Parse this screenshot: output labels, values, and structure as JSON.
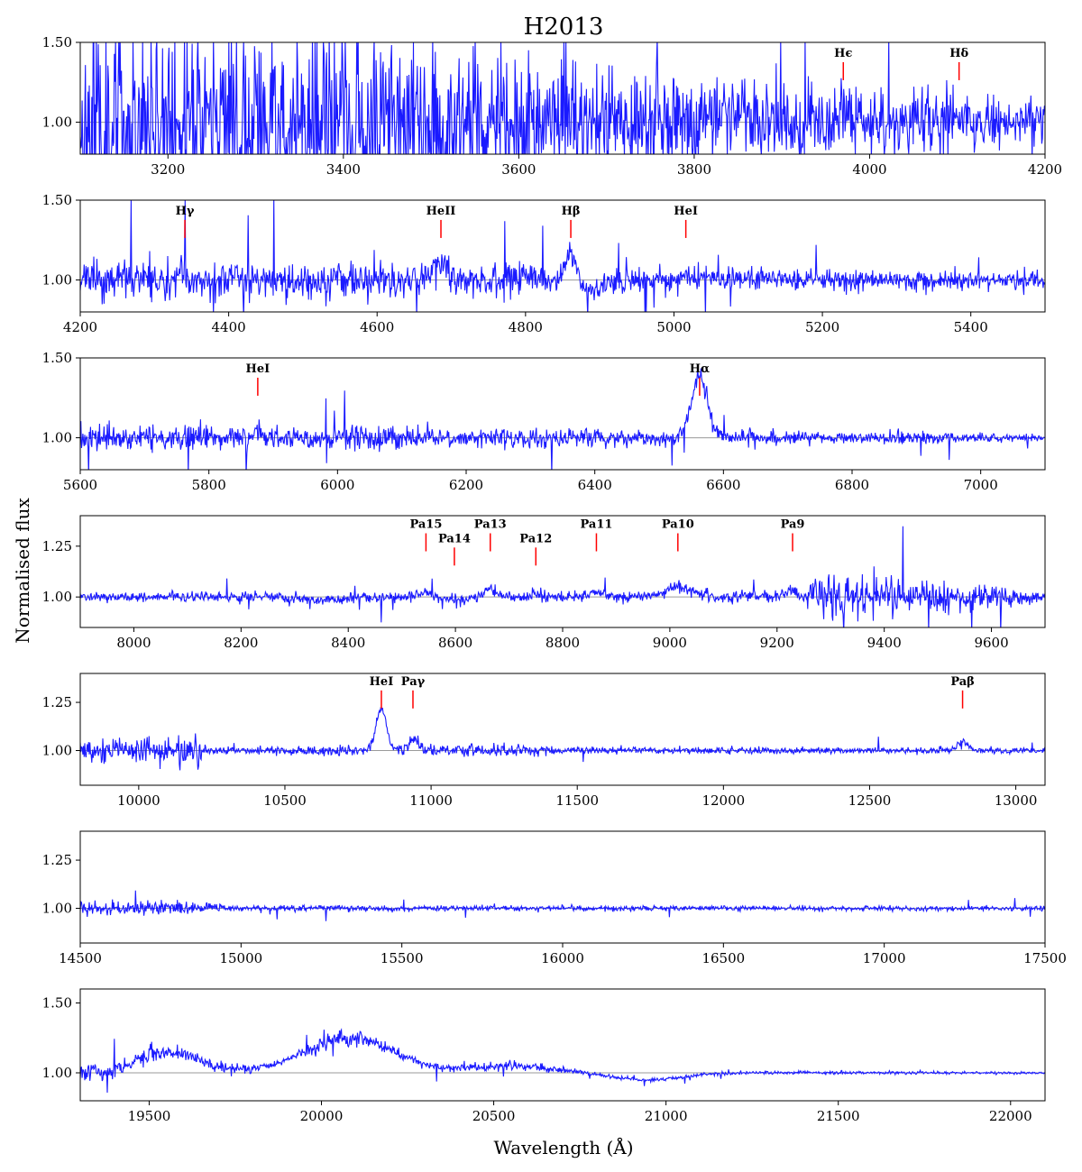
{
  "chart_data": {
    "type": "line",
    "title": "H2013",
    "xlabel": "Wavelength (Å)",
    "ylabel": "Normalised flux",
    "colors": {
      "spectrum": "#1a1aff",
      "marker": "#ff0000",
      "reference": "#9a9a9a"
    },
    "panels": [
      {
        "xlim": [
          3100,
          4200
        ],
        "ylim": [
          0.8,
          1.5
        ],
        "xticks": [
          "3200",
          "3400",
          "3600",
          "3800",
          "4000",
          "4200"
        ],
        "yticks": [
          "1.00",
          "1.50"
        ],
        "seed": 11,
        "noise": [
          [
            3100,
            0.55
          ],
          [
            3500,
            0.45
          ],
          [
            3700,
            0.3
          ],
          [
            3900,
            0.2
          ],
          [
            4200,
            0.12
          ]
        ],
        "features": [
          [
            3970,
            0.08,
            5
          ],
          [
            4102,
            0.06,
            5
          ]
        ],
        "lines": [
          {
            "label": "Hϵ",
            "wavelength": 3970,
            "label_y": 1.41
          },
          {
            "label": "Hδ",
            "wavelength": 4102,
            "label_y": 1.41
          }
        ]
      },
      {
        "xlim": [
          4200,
          5500
        ],
        "ylim": [
          0.8,
          1.5
        ],
        "xticks": [
          "4200",
          "4400",
          "4600",
          "4800",
          "5000",
          "5200",
          "5400"
        ],
        "yticks": [
          "1.00",
          "1.50"
        ],
        "seed": 23,
        "noise": [
          [
            4200,
            0.1
          ],
          [
            4700,
            0.09
          ],
          [
            4900,
            0.06
          ],
          [
            5500,
            0.05
          ]
        ],
        "features": [
          [
            4341,
            0.05,
            6
          ],
          [
            4686,
            0.1,
            10
          ],
          [
            4861,
            0.18,
            7
          ],
          [
            4890,
            -0.06,
            15
          ],
          [
            5016,
            0.03,
            5
          ]
        ],
        "lines": [
          {
            "label": "Hγ",
            "wavelength": 4341,
            "label_y": 1.41
          },
          {
            "label": "HeII",
            "wavelength": 4686,
            "label_y": 1.41
          },
          {
            "label": "Hβ",
            "wavelength": 4861,
            "label_y": 1.41
          },
          {
            "label": "HeI",
            "wavelength": 5016,
            "label_y": 1.41
          }
        ]
      },
      {
        "xlim": [
          5600,
          7100
        ],
        "ylim": [
          0.8,
          1.5
        ],
        "xticks": [
          "5600",
          "5800",
          "6000",
          "6200",
          "6400",
          "6600",
          "6800",
          "7000"
        ],
        "yticks": [
          "1.00",
          "1.50"
        ],
        "seed": 37,
        "noise": [
          [
            5600,
            0.07
          ],
          [
            5900,
            0.06
          ],
          [
            6300,
            0.05
          ],
          [
            7100,
            0.02
          ]
        ],
        "features": [
          [
            5876,
            0.05,
            5
          ],
          [
            6563,
            0.39,
            12
          ]
        ],
        "lines": [
          {
            "label": "HeI",
            "wavelength": 5876,
            "label_y": 1.41
          },
          {
            "label": "Hα",
            "wavelength": 6563,
            "label_y": 1.41
          }
        ]
      },
      {
        "xlim": [
          7900,
          9700
        ],
        "ylim": [
          0.85,
          1.4
        ],
        "xticks": [
          "8000",
          "8200",
          "8400",
          "8600",
          "8800",
          "9000",
          "9200",
          "9400",
          "9600"
        ],
        "yticks": [
          "1.00",
          "1.25"
        ],
        "seed": 41,
        "noise": [
          [
            7900,
            0.02
          ],
          [
            9250,
            0.025
          ],
          [
            9300,
            0.1
          ],
          [
            9600,
            0.05
          ],
          [
            9700,
            0.02
          ]
        ],
        "features": [
          [
            8545,
            0.02,
            10
          ],
          [
            8598,
            0.015,
            10
          ],
          [
            8665,
            0.04,
            12
          ],
          [
            8750,
            0.01,
            10
          ],
          [
            8863,
            0.03,
            10
          ],
          [
            9015,
            0.05,
            25
          ],
          [
            9229,
            0.03,
            12
          ],
          [
            8600,
            -0.03,
            15
          ],
          [
            8350,
            -0.015,
            40
          ]
        ],
        "lines": [
          {
            "label": "Pa15",
            "wavelength": 8545,
            "label_y": 1.34
          },
          {
            "label": "Pa14",
            "wavelength": 8598,
            "label_y": 1.27
          },
          {
            "label": "Pa13",
            "wavelength": 8665,
            "label_y": 1.34
          },
          {
            "label": "Pa12",
            "wavelength": 8750,
            "label_y": 1.27
          },
          {
            "label": "Pa11",
            "wavelength": 8863,
            "label_y": 1.34
          },
          {
            "label": "Pa10",
            "wavelength": 9015,
            "label_y": 1.34
          },
          {
            "label": "Pa9",
            "wavelength": 9229,
            "label_y": 1.34
          }
        ]
      },
      {
        "xlim": [
          9800,
          13100
        ],
        "ylim": [
          0.82,
          1.4
        ],
        "xticks": [
          "10000",
          "10500",
          "11000",
          "11500",
          "12000",
          "12500",
          "13000"
        ],
        "yticks": [
          "1.00",
          "1.25"
        ],
        "seed": 53,
        "noise": [
          [
            9800,
            0.05
          ],
          [
            10200,
            0.07
          ],
          [
            10250,
            0.015
          ],
          [
            11200,
            0.03
          ],
          [
            11500,
            0.015
          ],
          [
            13100,
            0.012
          ]
        ],
        "features": [
          [
            10830,
            0.22,
            18
          ],
          [
            10938,
            0.05,
            20
          ],
          [
            12818,
            0.05,
            18
          ]
        ],
        "lines": [
          {
            "label": "HeI",
            "wavelength": 10830,
            "label_y": 1.34
          },
          {
            "label": "Paγ",
            "wavelength": 10938,
            "label_y": 1.34
          },
          {
            "label": "Paβ",
            "wavelength": 12818,
            "label_y": 1.34
          }
        ]
      },
      {
        "xlim": [
          14500,
          17500
        ],
        "ylim": [
          0.82,
          1.4
        ],
        "xticks": [
          "14500",
          "15000",
          "15500",
          "16000",
          "16500",
          "17000",
          "17500"
        ],
        "yticks": [
          "1.00",
          "1.25"
        ],
        "seed": 67,
        "noise": [
          [
            14500,
            0.03
          ],
          [
            14800,
            0.03
          ],
          [
            15000,
            0.012
          ],
          [
            17500,
            0.01
          ]
        ],
        "features": [],
        "lines": []
      },
      {
        "xlim": [
          19300,
          22100
        ],
        "ylim": [
          0.8,
          1.6
        ],
        "xticks": [
          "19500",
          "20000",
          "20500",
          "21000",
          "21500",
          "22000"
        ],
        "yticks": [
          "1.00",
          "1.50"
        ],
        "seed": 79,
        "noise": [
          [
            19300,
            0.05
          ],
          [
            19700,
            0.04
          ],
          [
            19900,
            0.015
          ],
          [
            20000,
            0.06
          ],
          [
            20300,
            0.02
          ],
          [
            20600,
            0.03
          ],
          [
            20800,
            0.01
          ],
          [
            22100,
            0.008
          ]
        ],
        "features": [
          [
            19560,
            0.15,
            90
          ],
          [
            20080,
            0.25,
            130
          ],
          [
            20550,
            0.05,
            110
          ],
          [
            20950,
            -0.05,
            100
          ]
        ],
        "lines": []
      }
    ]
  }
}
